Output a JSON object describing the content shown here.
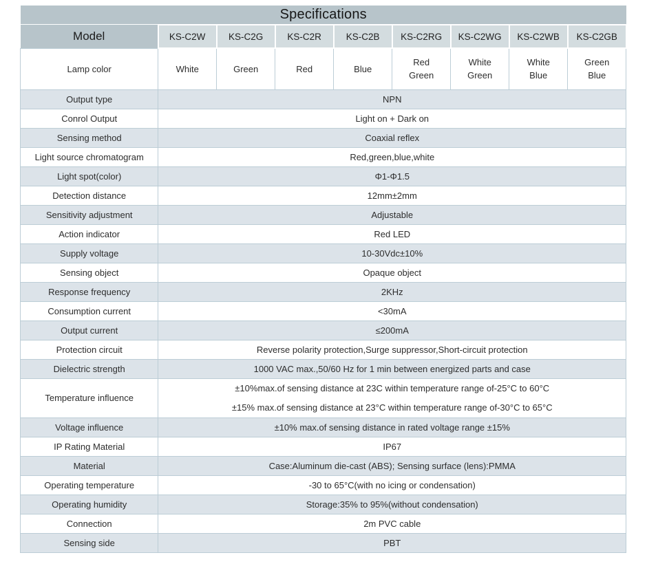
{
  "title": "Specifications",
  "colors": {
    "band": "#b7c4ca",
    "model_cell": "#d3dcdf",
    "row_shade": "#dce3e9",
    "border": "#bccdd6",
    "text": "#2d2d2d"
  },
  "header": {
    "model_label": "Model",
    "models": [
      "KS-C2W",
      "KS-C2G",
      "KS-C2R",
      "KS-C2B",
      "KS-C2RG",
      "KS-C2WG",
      "KS-C2WB",
      "KS-C2GB"
    ]
  },
  "lamp_row": {
    "label": "Lamp color",
    "values": [
      "White",
      "Green",
      "Red",
      "Blue",
      "Red\nGreen",
      "White\nGreen",
      "White\nBlue",
      "Green\nBlue"
    ]
  },
  "rows": [
    {
      "label": "Output type",
      "value": "NPN"
    },
    {
      "label": "Conrol Output",
      "value": "Light on + Dark on"
    },
    {
      "label": "Sensing method",
      "value": "Coaxial reflex"
    },
    {
      "label": "Light source chromatogram",
      "value": "Red,green,blue,white"
    },
    {
      "label": "Light spot(color)",
      "value": "Φ1-Φ1.5"
    },
    {
      "label": "Detection distance",
      "value": "12mm±2mm"
    },
    {
      "label": "Sensitivity adjustment",
      "value": "Adjustable"
    },
    {
      "label": "Action indicator",
      "value": "Red LED"
    },
    {
      "label": "Supply voltage",
      "value": "10-30Vdc±10%"
    },
    {
      "label": "Sensing object",
      "value": "Opaque object"
    },
    {
      "label": "Response frequency",
      "value": "2KHz"
    },
    {
      "label": "Consumption current",
      "value": "<30mA"
    },
    {
      "label": "Output current",
      "value": "≤200mA"
    },
    {
      "label": "Protection circuit",
      "value": "Reverse polarity protection,Surge suppressor,Short-circuit protection"
    },
    {
      "label": "Dielectric strength",
      "value": "1000 VAC max.,50/60 Hz for 1 min between energized parts and case"
    },
    {
      "label": "Temperature influence",
      "value": "±10%max.of sensing distance at 23C within temperature range of-25°C to 60°C\n±15% max.of sensing distance at 23°C within temperature range of-30°C to 65°C"
    },
    {
      "label": "Voltage influence",
      "value": "±10% max.of sensing distance in rated voltage range ±15%"
    },
    {
      "label": "IP Rating Material",
      "value": "IP67"
    },
    {
      "label": "Material",
      "value": "Case:Aluminum die-cast (ABS); Sensing surface (lens):PMMA"
    },
    {
      "label": "Operating temperature",
      "value": "-30 to 65°C(with no icing or condensation)"
    },
    {
      "label": "Operating humidity",
      "value": "Storage:35% to 95%(without condensation)"
    },
    {
      "label": "Connection",
      "value": "2m PVC cable"
    },
    {
      "label": "Sensing side",
      "value": "PBT"
    }
  ]
}
